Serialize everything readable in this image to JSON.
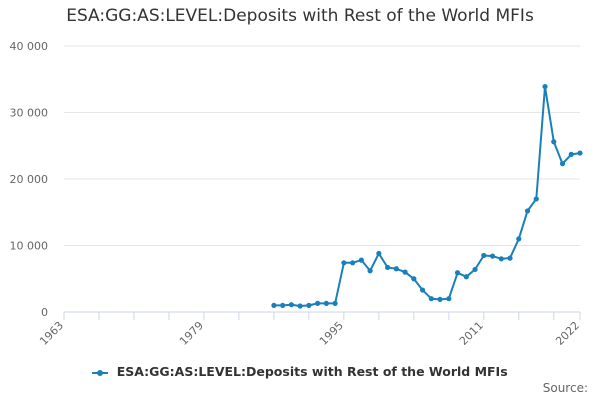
{
  "chart_data": {
    "type": "line",
    "title": "ESA:GG:AS:LEVEL:Deposits with Rest of the World MFIs",
    "xlabel": "",
    "ylabel": "",
    "xlim": [
      1963,
      2022
    ],
    "ylim": [
      0,
      40000
    ],
    "x_ticks": [
      1963,
      1979,
      1995,
      2011,
      2022
    ],
    "y_ticks": [
      0,
      10000,
      20000,
      30000,
      40000
    ],
    "y_tick_labels": [
      "0",
      "10 000",
      "20 000",
      "30 000",
      "40 000"
    ],
    "grid": "horizontal",
    "legend": "bottom",
    "series": [
      {
        "name": "ESA:GG:AS:LEVEL:Deposits with Rest of the World MFIs",
        "color": "#1a80bb",
        "x": [
          1987,
          1988,
          1989,
          1990,
          1991,
          1992,
          1993,
          1994,
          1995,
          1996,
          1997,
          1998,
          1999,
          2000,
          2001,
          2002,
          2003,
          2004,
          2005,
          2006,
          2007,
          2008,
          2009,
          2010,
          2011,
          2012,
          2013,
          2014,
          2015,
          2016,
          2017,
          2018,
          2019,
          2020,
          2021,
          2022
        ],
        "values": [
          1000,
          1000,
          1100,
          900,
          1000,
          1300,
          1300,
          1300,
          7400,
          7400,
          7800,
          6200,
          8800,
          6700,
          6500,
          6000,
          5000,
          3300,
          2000,
          1900,
          2000,
          5900,
          5300,
          6400,
          8500,
          8400,
          8000,
          8100,
          11000,
          15200,
          17000,
          33900,
          25600,
          22300,
          23700,
          23900
        ]
      }
    ]
  },
  "source_label": "Source:"
}
